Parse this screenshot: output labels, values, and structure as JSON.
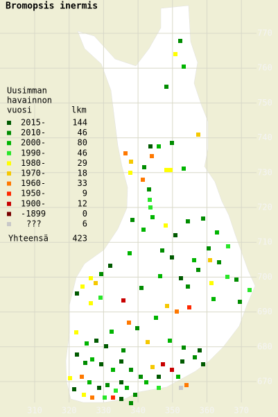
{
  "title": "Bromopsis inermis",
  "legend": {
    "heading": [
      "Uusimman",
      "havainnon",
      "vuosi"
    ],
    "count_heading": "lkm",
    "rows": [
      {
        "label": "2015-",
        "count": 144,
        "color": "#005a00"
      },
      {
        "label": "2010-",
        "count": 46,
        "color": "#008c00"
      },
      {
        "label": "2000-",
        "count": 80,
        "color": "#00b400"
      },
      {
        "label": "1990-",
        "count": 46,
        "color": "#28e628"
      },
      {
        "label": "1980-",
        "count": 29,
        "color": "#ffff00"
      },
      {
        "label": "1970-",
        "count": 18,
        "color": "#f5c800"
      },
      {
        "label": "1960-",
        "count": 33,
        "color": "#ff7800"
      },
      {
        "label": "1950-",
        "count": 9,
        "color": "#ff2800"
      },
      {
        "label": "1900-",
        "count": 12,
        "color": "#c80000"
      },
      {
        "label": "-1899",
        "count": 0,
        "color": "#780000"
      },
      {
        "label": "???",
        "count": 6,
        "color": "#c8c8c8"
      }
    ],
    "total_label": "Yhteensä",
    "total": 423
  },
  "x_grid": [
    310,
    320,
    330,
    340,
    350,
    360,
    370
  ],
  "y_grid": [
    670,
    680,
    690,
    700,
    710,
    720,
    730,
    740,
    750,
    760,
    770
  ]
}
